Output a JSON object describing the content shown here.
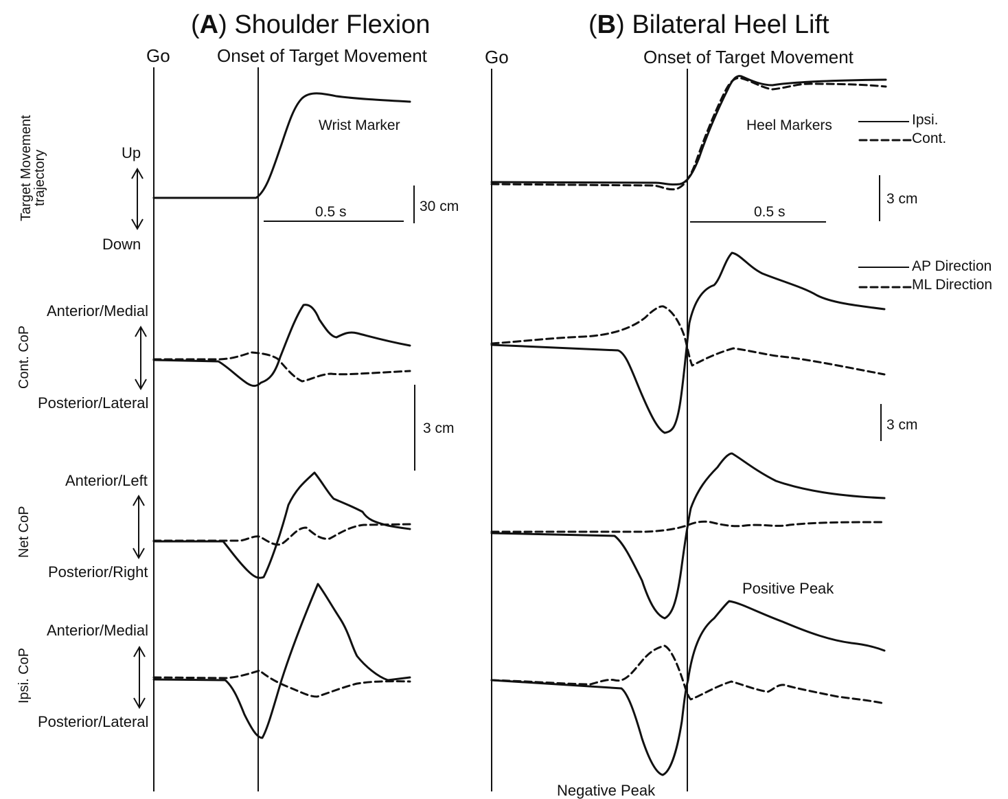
{
  "chart_data": [
    {
      "panel": "A",
      "title_letter": "A",
      "title_text": "Shoulder Flexion",
      "event_labels": [
        "Go",
        "Onset of Target Movement"
      ],
      "time_scale_label": "0.5 s",
      "rows": [
        {
          "ylabel": "Target Movement trajectory",
          "up_label": "Up",
          "down_label": "Down",
          "trace_label": "Wrist Marker",
          "scale_label": "30 cm"
        },
        {
          "ylabel": "Cont. CoP",
          "up_label": "Anterior/Medial",
          "down_label": "Posterior/Lateral"
        },
        {
          "ylabel": "Net CoP",
          "up_label": "Anterior/Left",
          "down_label": "Posterior/Right",
          "scale_label": "3 cm"
        },
        {
          "ylabel": "Ipsi. CoP",
          "up_label": "Anterior/Medial",
          "down_label": "Posterior/Lateral"
        }
      ]
    },
    {
      "panel": "B",
      "title_letter": "B",
      "title_text": "Bilateral Heel Lift",
      "event_labels": [
        "Go",
        "Onset of Target Movement"
      ],
      "time_scale_label": "0.5 s",
      "rows": [
        {
          "trace_label": "Heel Markers",
          "scale_label": "3 cm",
          "legend": [
            "Ipsi.",
            "Cont."
          ]
        },
        {
          "legend": [
            "AP Direction",
            "ML Direction"
          ],
          "scale_label": "3 cm"
        },
        {},
        {
          "annotations": [
            "Positive Peak",
            "Negative Peak"
          ]
        }
      ]
    }
  ]
}
